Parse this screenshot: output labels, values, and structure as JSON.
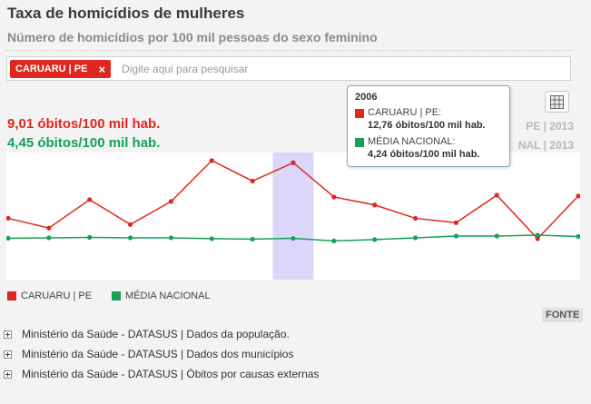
{
  "header": {
    "title": "Taxa de homicídios de mulheres",
    "subtitle": "Número de homicídios por 100 mil pessoas do sexo feminino"
  },
  "search": {
    "tag_label": "CARUARU | PE",
    "tag_close": "×",
    "placeholder": "Digite aqui para pesquisar"
  },
  "summary": {
    "local_value": "9,01 óbitos/100 mil hab.",
    "national_value": "4,45 óbitos/100 mil hab.",
    "local_ref_year": "PE | 2013",
    "national_ref_year": "NAL | 2013"
  },
  "tooltip": {
    "year": "2006",
    "local_name": "CARUARU | PE:",
    "local_value": "12,76 óbitos/100 mil hab.",
    "national_name": "MÉDIA NACIONAL:",
    "national_value": "4,24 óbitos/100 mil hab."
  },
  "legend": {
    "local": "CARUARU | PE",
    "national": "MÉDIA NACIONAL"
  },
  "fonte_label": "FONTE",
  "sources": [
    "Ministério da Saúde - DATASUS | Dados da população.",
    "Ministério da Saúde - DATASUS | Dados dos municípios",
    "Ministério da Saúde - DATASUS | Óbitos por causas externas"
  ],
  "colors": {
    "local": "#e0271f",
    "national": "#16a05a",
    "highlight": "#dcd6fb"
  },
  "chart_data": {
    "type": "line",
    "x": [
      1999,
      2000,
      2001,
      2002,
      2003,
      2004,
      2005,
      2006,
      2007,
      2008,
      2009,
      2010,
      2011,
      2012,
      2013
    ],
    "highlight_x": 2006,
    "ylim": [
      0,
      13.5
    ],
    "grid": false,
    "series": [
      {
        "name": "CARUARU | PE",
        "values": [
          6.5,
          5.4,
          8.6,
          5.8,
          8.4,
          13.0,
          10.7,
          12.76,
          8.9,
          8.0,
          6.5,
          6.0,
          9.1,
          4.2,
          9.01
        ]
      },
      {
        "name": "MÉDIA NACIONAL",
        "values": [
          4.25,
          4.3,
          4.35,
          4.3,
          4.3,
          4.2,
          4.15,
          4.24,
          3.95,
          4.1,
          4.3,
          4.5,
          4.5,
          4.6,
          4.45
        ]
      }
    ]
  }
}
